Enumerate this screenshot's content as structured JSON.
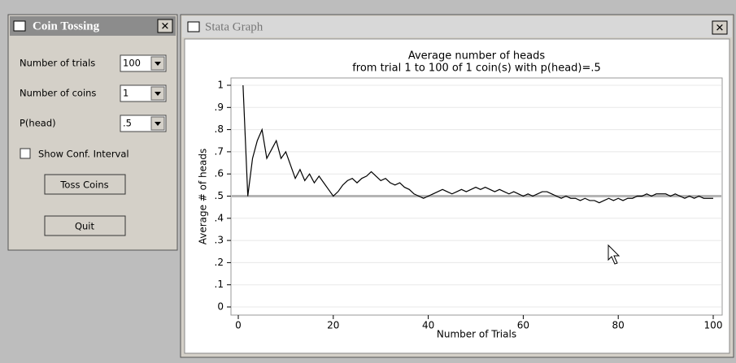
{
  "dialog": {
    "title": "Coin Tossing",
    "fields": [
      {
        "label": "Number of trials",
        "value": "100"
      },
      {
        "label": "Number of coins",
        "value": "1"
      },
      {
        "label": "P(head)",
        "value": ".5"
      }
    ],
    "checkbox": "Show Conf. Interval",
    "buttons": [
      "Toss Coins",
      "Quit"
    ]
  },
  "window": {
    "title": "Stata Graph"
  },
  "chart_data": {
    "type": "line",
    "title": "Average number of heads",
    "subtitle": "from trial 1 to 100 of 1 coin(s) with p(head)=.5",
    "x_label": "Number of Trials",
    "y_label": "Average # of heads",
    "x": [
      1,
      2,
      3,
      4,
      5,
      6,
      7,
      8,
      9,
      10,
      11,
      12,
      13,
      14,
      15,
      16,
      17,
      18,
      19,
      20,
      21,
      22,
      23,
      24,
      25,
      26,
      27,
      28,
      29,
      30,
      31,
      32,
      33,
      34,
      35,
      36,
      37,
      38,
      39,
      40,
      41,
      42,
      43,
      44,
      45,
      46,
      47,
      48,
      49,
      50,
      51,
      52,
      53,
      54,
      55,
      56,
      57,
      58,
      59,
      60,
      61,
      62,
      63,
      64,
      65,
      66,
      67,
      68,
      69,
      70,
      71,
      72,
      73,
      74,
      75,
      76,
      77,
      78,
      79,
      80,
      81,
      82,
      83,
      84,
      85,
      86,
      87,
      88,
      89,
      90,
      91,
      92,
      93,
      94,
      95,
      96,
      97,
      98,
      99,
      100
    ],
    "values": [
      1,
      0.5,
      0.67,
      0.75,
      0.8,
      0.67,
      0.71,
      0.75,
      0.67,
      0.7,
      0.64,
      0.58,
      0.62,
      0.57,
      0.6,
      0.56,
      0.59,
      0.56,
      0.53,
      0.5,
      0.52,
      0.55,
      0.57,
      0.58,
      0.56,
      0.58,
      0.59,
      0.61,
      0.59,
      0.57,
      0.58,
      0.56,
      0.55,
      0.56,
      0.54,
      0.53,
      0.51,
      0.5,
      0.49,
      0.5,
      0.51,
      0.52,
      0.53,
      0.52,
      0.51,
      0.52,
      0.53,
      0.52,
      0.53,
      0.54,
      0.53,
      0.54,
      0.53,
      0.52,
      0.53,
      0.52,
      0.51,
      0.52,
      0.51,
      0.5,
      0.51,
      0.5,
      0.51,
      0.52,
      0.52,
      0.51,
      0.5,
      0.49,
      0.5,
      0.49,
      0.49,
      0.48,
      0.49,
      0.48,
      0.48,
      0.47,
      0.48,
      0.49,
      0.48,
      0.49,
      0.48,
      0.49,
      0.49,
      0.5,
      0.5,
      0.51,
      0.5,
      0.51,
      0.51,
      0.51,
      0.5,
      0.51,
      0.5,
      0.49,
      0.5,
      0.49,
      0.5,
      0.49,
      0.49,
      0.49
    ],
    "color": "#000000",
    "reference_line": {
      "value": 0.5,
      "color": "#b4b4b4"
    },
    "xlim": [
      0,
      100
    ],
    "xticks": [
      0,
      20,
      40,
      60,
      80,
      100
    ],
    "ylim": [
      0,
      1
    ],
    "yticks": [
      0,
      {
        "value": 0.1,
        "label": ".1"
      },
      {
        "value": 0.2,
        "label": ".2"
      },
      {
        "value": 0.3,
        "label": ".3"
      },
      {
        "value": 0.4,
        "label": ".4"
      },
      {
        "value": 0.5,
        "label": ".5"
      },
      {
        "value": 0.6,
        "label": ".6"
      },
      {
        "value": 0.7,
        "label": ".7"
      },
      {
        "value": 0.8,
        "label": ".8"
      },
      {
        "value": 0.9,
        "label": ".9"
      },
      1
    ],
    "grid": true
  }
}
